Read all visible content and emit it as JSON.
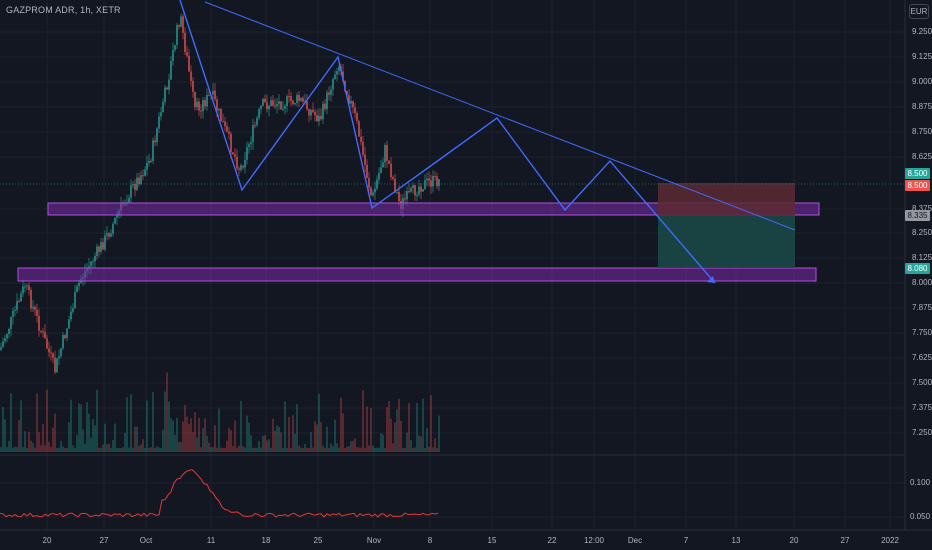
{
  "header": {
    "symbol": "GAZPROM ADR, 1h, XETR",
    "currency": "EUR"
  },
  "price_axis": [
    "9.250",
    "9.125",
    "9.000",
    "8.875",
    "8.750",
    "8.625",
    "8.375",
    "8.250",
    "8.125",
    "8.000",
    "7.875",
    "7.750",
    "7.625",
    "7.500",
    "7.375",
    "7.250"
  ],
  "badges": {
    "target": "8.500",
    "stop": "8.500",
    "current": "8.335",
    "tp": "8.080"
  },
  "osc_axis": [
    "0.100",
    "0.050"
  ],
  "date_axis": [
    "20",
    "27",
    "Oct",
    "11",
    "18",
    "25",
    "Nov",
    "8",
    "15",
    "22",
    "12:00",
    "Dec",
    "7",
    "13",
    "20",
    "27",
    "2022"
  ],
  "colors": {
    "background": "#131722",
    "pattern_lines": "#3f6bff",
    "zone_fill": "#7b2aa8",
    "stop_fill": "#5c2a33",
    "target_fill": "#1b4a48",
    "up": "#26a69a",
    "down": "#ef5350",
    "oscillator": "#e53935"
  }
}
